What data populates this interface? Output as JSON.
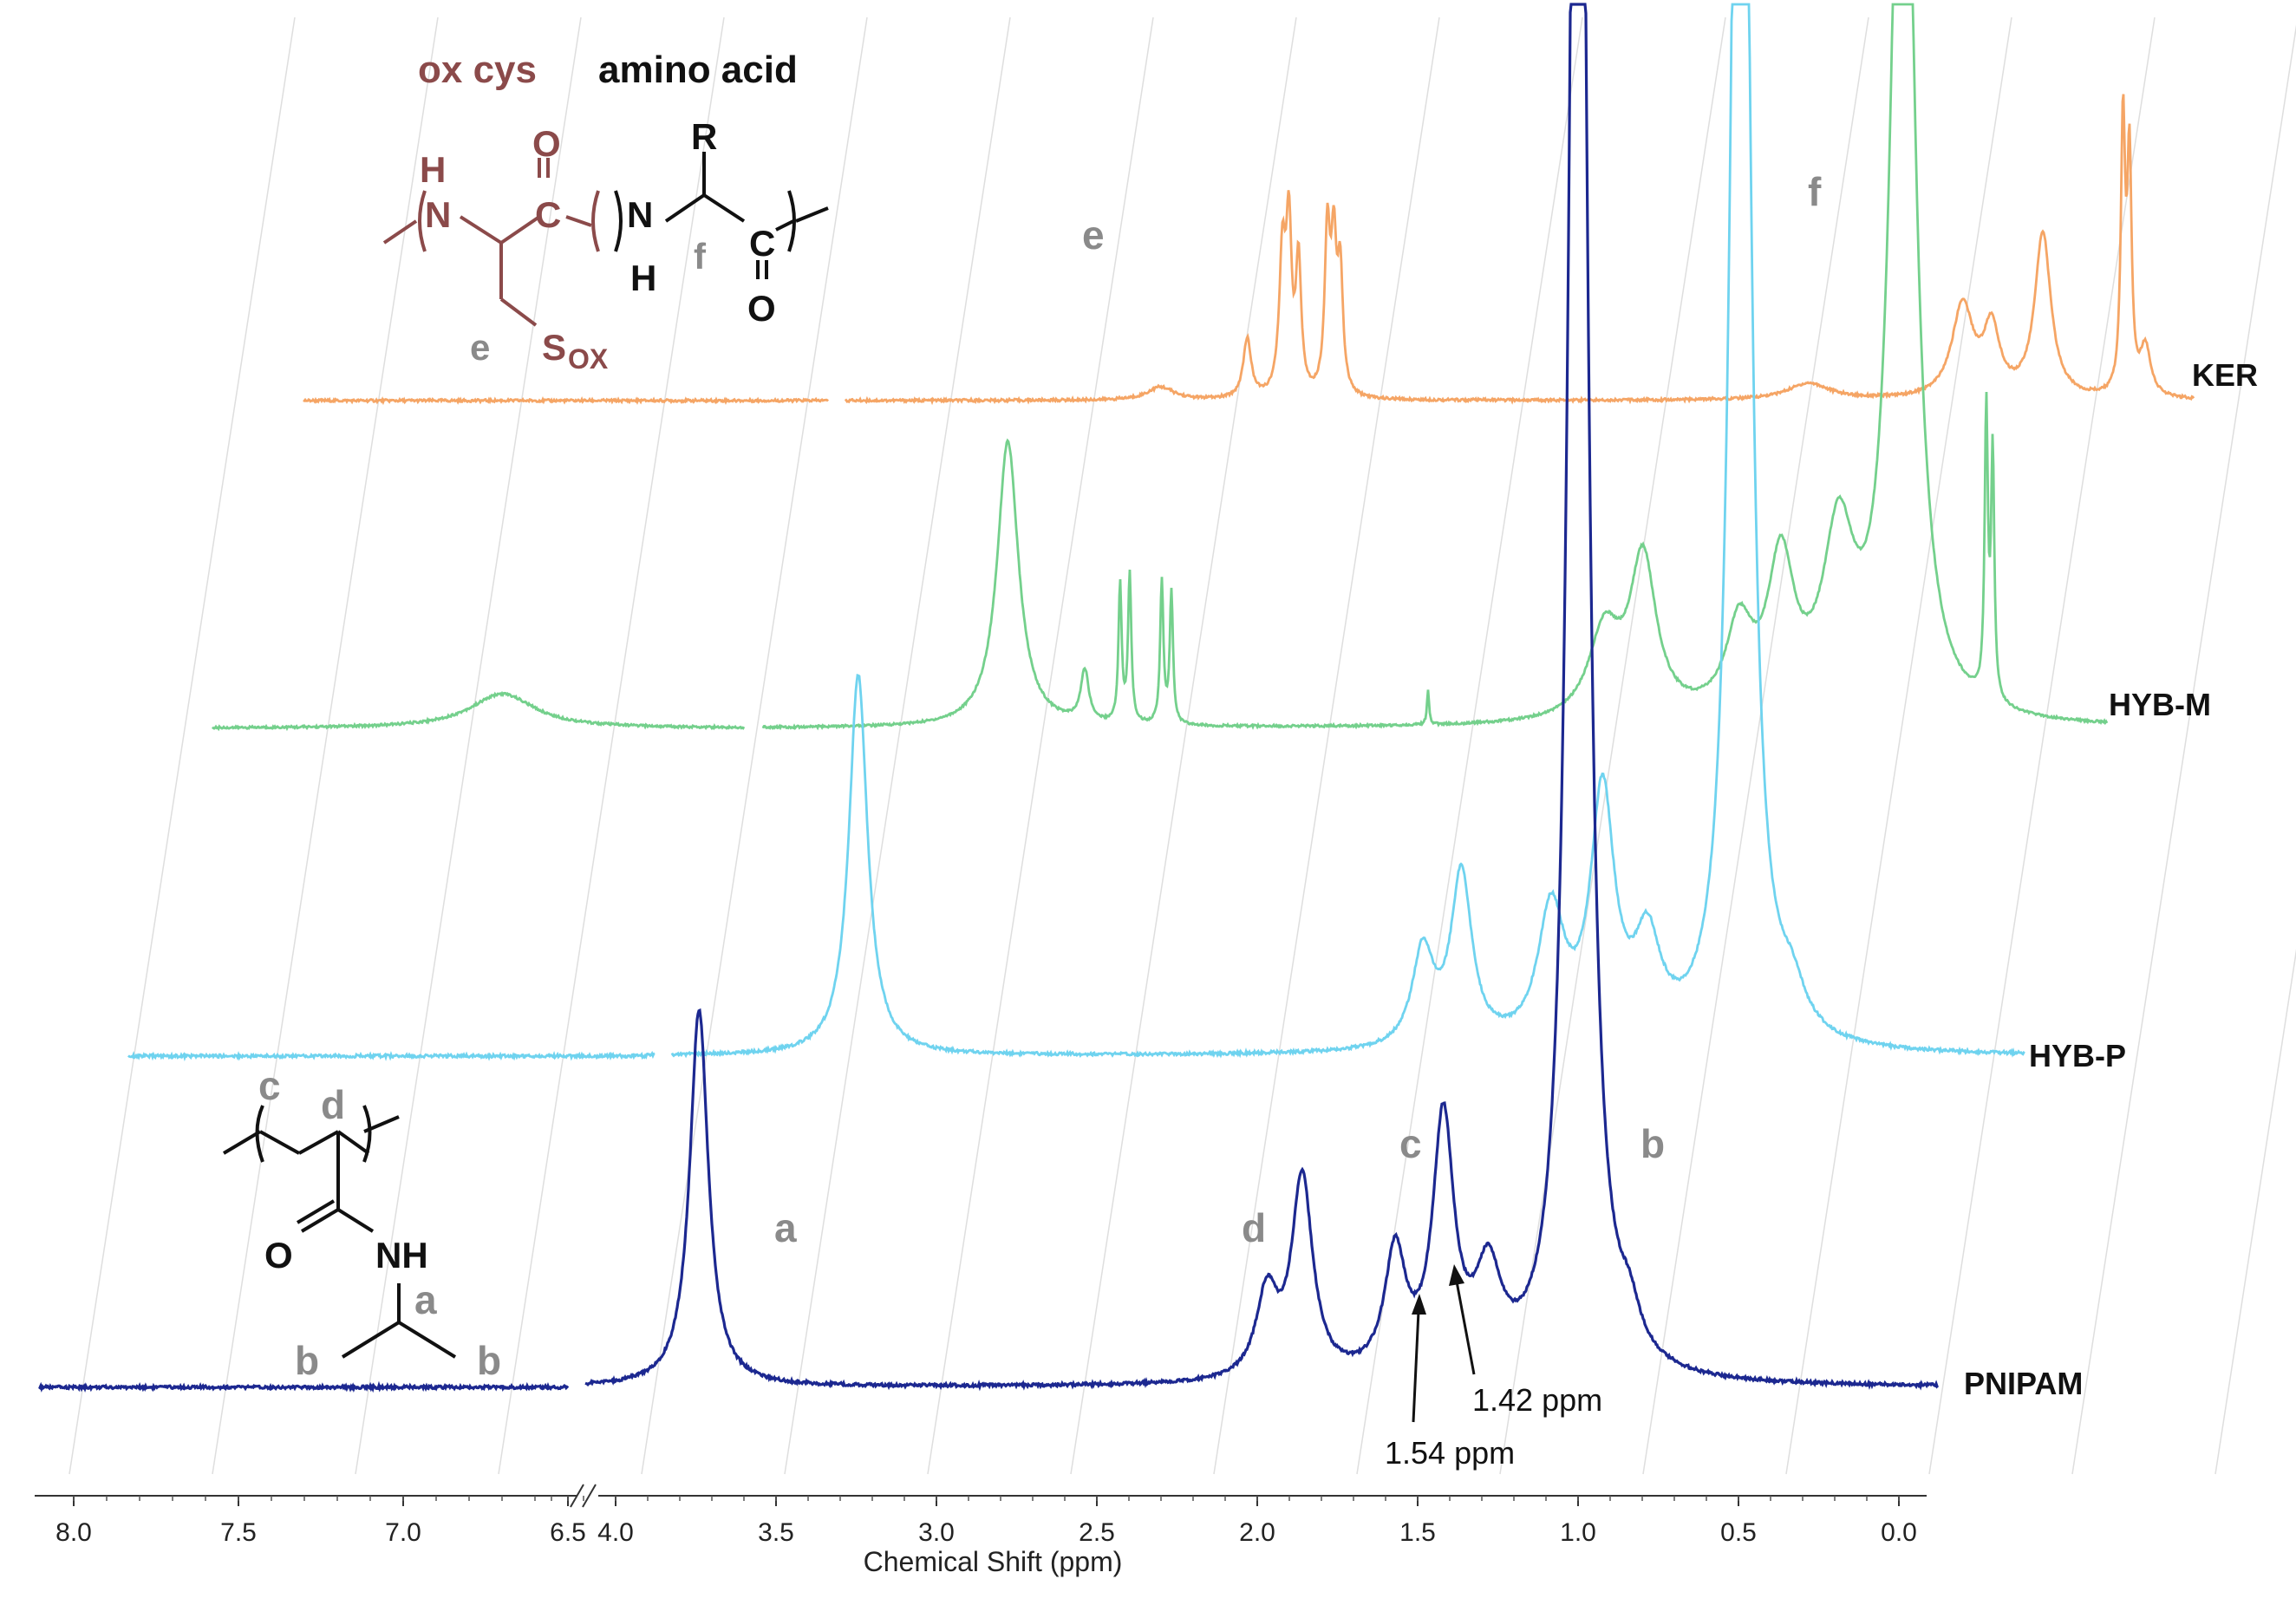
{
  "chart_data": {
    "type": "line",
    "xlabel": "Chemical Shift (ppm)",
    "x_axis_break": [
      4.3,
      6.4
    ],
    "xlim_left_segment": [
      8.1,
      6.4
    ],
    "xlim_right_segment": [
      4.3,
      -0.1
    ],
    "tick_labels": [
      "8.0",
      "7.5",
      "7.0",
      "6.5",
      "4.0",
      "3.5",
      "3.0",
      "2.5",
      "2.0",
      "1.5",
      "1.0",
      "0.5",
      "0.0"
    ],
    "series": [
      {
        "name": "KER",
        "color": "#f5a565",
        "peaks": [
          {
            "ppm": 2.57,
            "height": 0.42,
            "width": 0.012
          },
          {
            "ppm": 2.55,
            "height": 0.48,
            "width": 0.01
          },
          {
            "ppm": 2.52,
            "height": 0.4,
            "width": 0.01
          },
          {
            "ppm": 2.43,
            "height": 0.48,
            "width": 0.01
          },
          {
            "ppm": 2.41,
            "height": 0.42,
            "width": 0.01
          },
          {
            "ppm": 2.39,
            "height": 0.36,
            "width": 0.01
          },
          {
            "ppm": 2.68,
            "height": 0.18,
            "width": 0.015
          },
          {
            "ppm": 2.95,
            "height": 0.04,
            "width": 0.05
          },
          {
            "ppm": 0.93,
            "height": 0.05,
            "width": 0.08
          },
          {
            "ppm": 0.45,
            "height": 0.28,
            "width": 0.04
          },
          {
            "ppm": 0.36,
            "height": 0.2,
            "width": 0.03
          },
          {
            "ppm": 0.2,
            "height": 0.5,
            "width": 0.03
          },
          {
            "ppm": -0.05,
            "height": 0.82,
            "width": 0.008
          },
          {
            "ppm": -0.07,
            "height": 0.7,
            "width": 0.008
          },
          {
            "ppm": -0.12,
            "height": 0.15,
            "width": 0.02
          }
        ]
      },
      {
        "name": "HYB-M",
        "color": "#74d08c",
        "peaks": [
          {
            "ppm": 7.12,
            "height": 0.12,
            "width": 0.12
          },
          {
            "ppm": 3.21,
            "height": 1.0,
            "width": 0.04
          },
          {
            "ppm": 2.97,
            "height": 0.18,
            "width": 0.015
          },
          {
            "ppm": 2.86,
            "height": 0.48,
            "width": 0.006
          },
          {
            "ppm": 2.83,
            "height": 0.52,
            "width": 0.006
          },
          {
            "ppm": 2.73,
            "height": 0.5,
            "width": 0.006
          },
          {
            "ppm": 2.7,
            "height": 0.46,
            "width": 0.006
          },
          {
            "ppm": 1.9,
            "height": 0.12,
            "width": 0.004
          },
          {
            "ppm": 1.35,
            "height": 0.3,
            "width": 0.06
          },
          {
            "ppm": 1.23,
            "height": 0.55,
            "width": 0.05
          },
          {
            "ppm": 0.93,
            "height": 0.3,
            "width": 0.05
          },
          {
            "ppm": 0.8,
            "height": 0.52,
            "width": 0.05
          },
          {
            "ppm": 0.62,
            "height": 0.6,
            "width": 0.06
          },
          {
            "ppm": 0.42,
            "height": 4.0,
            "width": 0.04
          },
          {
            "ppm": 0.16,
            "height": 1.0,
            "width": 0.006
          },
          {
            "ppm": 0.14,
            "height": 0.85,
            "width": 0.006
          }
        ]
      },
      {
        "name": "HYB-P",
        "color": "#6fd3ef",
        "peaks": [
          {
            "ppm": 3.46,
            "height": 1.0,
            "width": 0.035
          },
          {
            "ppm": 1.7,
            "height": 0.25,
            "width": 0.04
          },
          {
            "ppm": 1.58,
            "height": 0.45,
            "width": 0.04
          },
          {
            "ppm": 1.3,
            "height": 0.35,
            "width": 0.05
          },
          {
            "ppm": 1.14,
            "height": 0.65,
            "width": 0.045
          },
          {
            "ppm": 1.0,
            "height": 0.25,
            "width": 0.05
          },
          {
            "ppm": 0.71,
            "height": 5.0,
            "width": 0.03
          },
          {
            "ppm": 0.55,
            "height": 0.1,
            "width": 0.05
          }
        ]
      },
      {
        "name": "PNIPAM",
        "color": "#1c2890",
        "peaks": [
          {
            "ppm": 3.74,
            "height": 1.0,
            "width": 0.035
          },
          {
            "ppm": 1.97,
            "height": 0.22,
            "width": 0.04
          },
          {
            "ppm": 1.86,
            "height": 0.53,
            "width": 0.04
          },
          {
            "ppm": 1.57,
            "height": 0.32,
            "width": 0.04
          },
          {
            "ppm": 1.42,
            "height": 0.67,
            "width": 0.04
          },
          {
            "ppm": 1.28,
            "height": 0.25,
            "width": 0.05
          },
          {
            "ppm": 1.0,
            "height": 6.0,
            "width": 0.03
          },
          {
            "ppm": 0.84,
            "height": 0.1,
            "width": 0.04
          }
        ]
      }
    ],
    "annotations": [
      {
        "text": "1.42 ppm",
        "ppm": 1.42
      },
      {
        "text": "1.54 ppm",
        "ppm": 1.54
      }
    ],
    "peak_labels": [
      "a",
      "b",
      "c",
      "d",
      "e",
      "f"
    ]
  },
  "structures": {
    "keratin_headers": [
      "ox cys",
      "amino acid"
    ],
    "keratin_atoms": [
      "H",
      "N",
      "O",
      "C",
      "R",
      "N",
      "H",
      "f",
      "C",
      "O",
      "e",
      "S",
      "OX"
    ],
    "pnipam_atoms": [
      "c",
      "d",
      "O",
      "NH",
      "a",
      "b",
      "b"
    ]
  },
  "colors": {
    "ox_cys": "#8b4a4a",
    "peak_label": "#8a8a8a"
  }
}
